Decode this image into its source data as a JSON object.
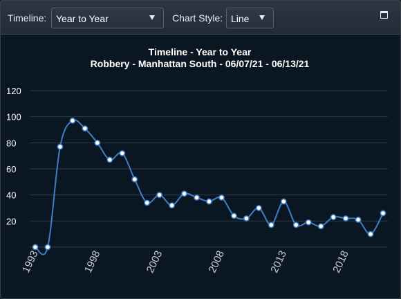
{
  "toolbar": {
    "timeline_label": "Timeline:",
    "timeline_value": "Year to Year",
    "chart_style_label": "Chart Style:",
    "chart_style_value": "Line",
    "restore_icon": "window-restore-icon"
  },
  "colors": {
    "background": "#0b1623",
    "line": "#3f7fc4",
    "marker_fill": "#ffffff",
    "gridline": "#2e3a48"
  },
  "chart_data": {
    "type": "line",
    "title": "Timeline - Year to Year",
    "subtitle": "Robbery - Manhattan South - 06/07/21 - 06/13/21",
    "xlabel": "",
    "ylabel": "",
    "x": [
      1993,
      1994,
      1995,
      1996,
      1997,
      1998,
      1999,
      2000,
      2001,
      2002,
      2003,
      2004,
      2005,
      2006,
      2007,
      2008,
      2009,
      2010,
      2011,
      2012,
      2013,
      2014,
      2015,
      2016,
      2017,
      2018,
      2019,
      2020,
      2021
    ],
    "values": [
      0,
      0,
      77,
      97,
      91,
      80,
      67,
      72,
      52,
      34,
      40,
      32,
      41,
      38,
      35,
      38,
      24,
      22,
      30,
      17,
      35,
      17,
      19,
      16,
      23,
      22,
      21,
      10,
      26
    ],
    "xticks": [
      "1993",
      "1998",
      "2003",
      "2008",
      "2013",
      "2018"
    ],
    "yticks": [
      "20",
      "40",
      "60",
      "80",
      "100",
      "120"
    ],
    "ylim": [
      0,
      120
    ],
    "grid": true,
    "legend": "none"
  }
}
